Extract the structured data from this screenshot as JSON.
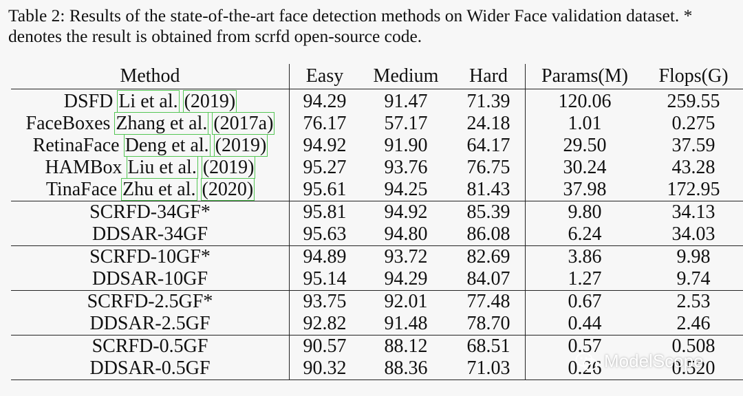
{
  "caption": "Table 2: Results of the state-of-the-art face detection methods on Wider Face validation dataset. * denotes the result is obtained from scrfd open-source code.",
  "headers": [
    "Method",
    "Easy",
    "Medium",
    "Hard",
    "Params(M)",
    "Flops(G)"
  ],
  "rows": [
    {
      "method": "DSFD",
      "cite": "Li et al.",
      "year": "(2019)",
      "easy": "94.29",
      "medium": "91.47",
      "hard": "71.39",
      "params": "120.06",
      "flops": "259.55"
    },
    {
      "method": "FaceBoxes",
      "cite": "Zhang et al.",
      "year": "(2017a)",
      "easy": "76.17",
      "medium": "57.17",
      "hard": "24.18",
      "params": "1.01",
      "flops": "0.275"
    },
    {
      "method": "RetinaFace",
      "cite": "Deng et al.",
      "year": "(2019)",
      "easy": "94.92",
      "medium": "91.90",
      "hard": "64.17",
      "params": "29.50",
      "flops": "37.59"
    },
    {
      "method": "HAMBox",
      "cite": "Liu et al.",
      "year": "(2019)",
      "easy": "95.27",
      "medium": "93.76",
      "hard": "76.75",
      "params": "30.24",
      "flops": "43.28"
    },
    {
      "method": "TinaFace",
      "cite": "Zhu et al.",
      "year": "(2020)",
      "easy": "95.61",
      "medium": "94.25",
      "hard": "81.43",
      "params": "37.98",
      "flops": "172.95"
    },
    {
      "method": "SCRFD-34GF*",
      "easy": "95.81",
      "medium": "94.92",
      "hard": "85.39",
      "params": "9.80",
      "flops": "34.13"
    },
    {
      "method": "DDSAR-34GF",
      "easy": "95.63",
      "medium": "94.80",
      "hard": "86.08",
      "params": "6.24",
      "flops": "34.03"
    },
    {
      "method": "SCRFD-10GF*",
      "easy": "94.89",
      "medium": "93.72",
      "hard": "82.69",
      "params": "3.86",
      "flops": "9.98"
    },
    {
      "method": "DDSAR-10GF",
      "easy": "95.14",
      "medium": "94.29",
      "hard": "84.07",
      "params": "1.27",
      "flops": "9.74"
    },
    {
      "method": "SCRFD-2.5GF*",
      "easy": "93.75",
      "medium": "92.01",
      "hard": "77.48",
      "params": "0.67",
      "flops": "2.53"
    },
    {
      "method": "DDSAR-2.5GF",
      "easy": "92.82",
      "medium": "91.48",
      "hard": "78.70",
      "params": "0.44",
      "flops": "2.46"
    },
    {
      "method": "SCRFD-0.5GF",
      "easy": "90.57",
      "medium": "88.12",
      "hard": "68.51",
      "params": "0.57",
      "flops": "0.508"
    },
    {
      "method": "DDSAR-0.5GF",
      "easy": "90.32",
      "medium": "88.36",
      "hard": "71.03",
      "params": "0.26",
      "flops": "0.520"
    }
  ],
  "group_starts": [
    5,
    7,
    9,
    11
  ],
  "watermark": {
    "text": "ModelScope",
    "icon": "wechat-icon"
  }
}
